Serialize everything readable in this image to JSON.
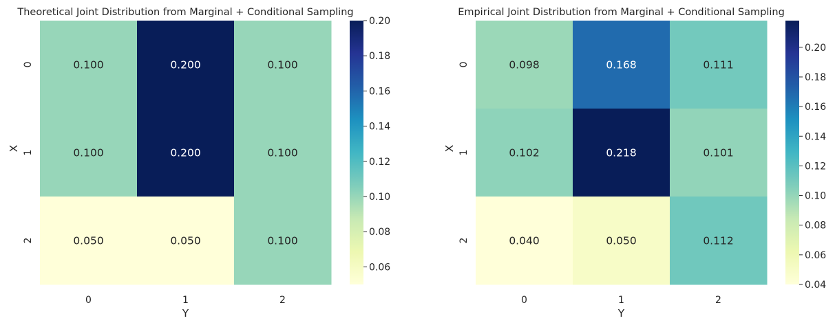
{
  "chart_data": [
    {
      "type": "heatmap",
      "title": "Theoretical Joint Distribution from Marginal + Conditional Sampling",
      "xlabel": "Y",
      "ylabel": "X",
      "x_categories": [
        "0",
        "1",
        "2"
      ],
      "y_categories": [
        "0",
        "1",
        "2"
      ],
      "values": [
        [
          0.1,
          0.2,
          0.1
        ],
        [
          0.1,
          0.2,
          0.1
        ],
        [
          0.05,
          0.05,
          0.1
        ]
      ],
      "cell_labels": [
        [
          "0.100",
          "0.200",
          "0.100"
        ],
        [
          "0.100",
          "0.200",
          "0.100"
        ],
        [
          "0.050",
          "0.050",
          "0.100"
        ]
      ],
      "colormap": "YlGnBu",
      "vmin": 0.05,
      "vmax": 0.2,
      "colorbar_ticks": [
        "0.06",
        "0.08",
        "0.10",
        "0.12",
        "0.14",
        "0.16",
        "0.18",
        "0.20"
      ]
    },
    {
      "type": "heatmap",
      "title": "Empirical Joint Distribution from Marginal + Conditional Sampling",
      "xlabel": "Y",
      "ylabel": "X",
      "x_categories": [
        "0",
        "1",
        "2"
      ],
      "y_categories": [
        "0",
        "1",
        "2"
      ],
      "values": [
        [
          0.098,
          0.168,
          0.111
        ],
        [
          0.102,
          0.218,
          0.101
        ],
        [
          0.04,
          0.05,
          0.112
        ]
      ],
      "cell_labels": [
        [
          "0.098",
          "0.168",
          "0.111"
        ],
        [
          "0.102",
          "0.218",
          "0.101"
        ],
        [
          "0.040",
          "0.050",
          "0.112"
        ]
      ],
      "colormap": "YlGnBu",
      "vmin": 0.04,
      "vmax": 0.218,
      "colorbar_ticks": [
        "0.04",
        "0.06",
        "0.08",
        "0.10",
        "0.12",
        "0.14",
        "0.16",
        "0.18",
        "0.20"
      ]
    }
  ]
}
